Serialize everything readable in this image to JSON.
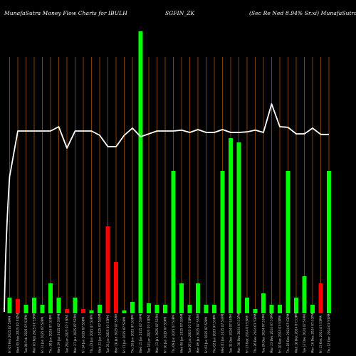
{
  "header": {
    "brand": "MunafaSutra  Money Flow  Charts for IBULH",
    "symbol": "SGFIN_ZK",
    "description": "(Sec Re    Ned 8.94% Sr.xi) MunafaSutra.com"
  },
  "chart_data": {
    "type": "bar",
    "background": "#000000",
    "grid_color": "#a0520a",
    "up_color": "#00ff00",
    "down_color": "#ff0000",
    "line_color": "#ffffff",
    "grid": true,
    "categories": [
      "Fri 07 Feb 2025 07:53PM",
      "Wed 05 Feb 2025 07:53PM",
      "Tue 04 Feb 2025 07:53PM",
      "Mon 03 Feb 2025 07:53PM",
      "Fri 31 Jan 2025 07:53PM",
      "Thu 30 Jan 2025 07:53PM",
      "Wed 29 Jan 2025 07:53PM",
      "Tue 28 Jan 2025 07:53PM",
      "Mon 27 Jan 2025 07:53PM",
      "Fri 24 Jan 2025 07:53PM",
      "Thu 23 Jan 2025 07:53PM",
      "Wed 22 Jan 2025 07:53PM",
      "Tue 21 Jan 2025 07:53PM",
      "Mon 20 Jan 2025 07:53PM",
      "Fri 17 Jan 2025 07:53PM",
      "Thu 16 Jan 2025 07:53PM",
      "Wed 15 Jan 2025 07:53PM",
      "Tue 14 Jan 2025 07:53PM",
      "Mon 13 Jan 2025 07:53PM",
      "Fri 10 Jan 2025 07:53PM",
      "Thu 09 Jan 2025 07:53PM",
      "Wed 08 Jan 2025 07:53PM",
      "Tue 07 Jan 2025 07:53PM",
      "Mon 06 Jan 2025 07:53PM",
      "Fri 03 Jan 2025 07:53PM",
      "Thu 02 Jan 2025 07:53PM",
      "Wed 01 Jan 2025 07:53PM",
      "Tue 31 Dec 2024 07:53PM",
      "Mon 30 Dec 2024 07:53PM",
      "Fri 27 Dec 2024 07:53PM",
      "Thu 26 Dec 2024 07:53PM",
      "Tue 24 Dec 2024 07:53PM",
      "Mon 23 Dec 2024 07:53PM",
      "Fri 20 Dec 2024 07:53PM",
      "Thu 19 Dec 2024 07:53PM",
      "Wed 18 Dec 2024 07:53PM",
      "Tue 17 Dec 2024 07:53PM",
      "Mon 16 Dec 2024 07:53PM",
      "Fri 13 Dec 2024 07:53PM",
      "Thu 12 Dec 2024 07:53PM"
    ],
    "bars": [
      {
        "value": 5.5,
        "color": "up"
      },
      {
        "value": 5,
        "color": "down"
      },
      {
        "value": 3,
        "color": "up"
      },
      {
        "value": 5.5,
        "color": "up"
      },
      {
        "value": 3,
        "color": "up"
      },
      {
        "value": 10.5,
        "color": "up"
      },
      {
        "value": 5.5,
        "color": "up"
      },
      {
        "value": 1.5,
        "color": "down"
      },
      {
        "value": 5.5,
        "color": "up"
      },
      {
        "value": 1.5,
        "color": "down"
      },
      {
        "value": 1,
        "color": "up"
      },
      {
        "value": 3,
        "color": "up"
      },
      {
        "value": 30.5,
        "color": "down"
      },
      {
        "value": 18,
        "color": "down"
      },
      {
        "value": 1,
        "color": "up"
      },
      {
        "value": 4,
        "color": "up"
      },
      {
        "value": 99,
        "color": "up"
      },
      {
        "value": 3.5,
        "color": "up"
      },
      {
        "value": 3,
        "color": "up"
      },
      {
        "value": 3,
        "color": "up"
      },
      {
        "value": 50,
        "color": "up"
      },
      {
        "value": 10.5,
        "color": "up"
      },
      {
        "value": 3,
        "color": "up"
      },
      {
        "value": 10.5,
        "color": "up"
      },
      {
        "value": 3,
        "color": "up"
      },
      {
        "value": 3,
        "color": "up"
      },
      {
        "value": 50,
        "color": "up"
      },
      {
        "value": 61.5,
        "color": "up"
      },
      {
        "value": 60,
        "color": "up"
      },
      {
        "value": 5.5,
        "color": "up"
      },
      {
        "value": 1.5,
        "color": "up"
      },
      {
        "value": 7,
        "color": "up"
      },
      {
        "value": 3,
        "color": "up"
      },
      {
        "value": 3,
        "color": "up"
      },
      {
        "value": 50,
        "color": "up"
      },
      {
        "value": 5.5,
        "color": "up"
      },
      {
        "value": 13,
        "color": "up"
      },
      {
        "value": 3,
        "color": "up"
      },
      {
        "value": 10.5,
        "color": "down"
      },
      {
        "value": 50,
        "color": "up"
      }
    ],
    "price_line": [
      48,
      64,
      64,
      64,
      64,
      64,
      65.5,
      58,
      64,
      64,
      64,
      62.5,
      58.5,
      58.5,
      62.5,
      65,
      62,
      63,
      64,
      64,
      64,
      64.3,
      63.5,
      64.5,
      63.5,
      63.5,
      64.5,
      63.5,
      63.5,
      63.7,
      64.3,
      63.5,
      73.5,
      65.5,
      65.3,
      63,
      63,
      65,
      62.8,
      62.8
    ]
  }
}
